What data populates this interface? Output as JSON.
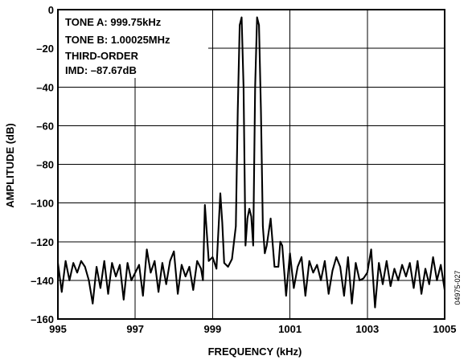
{
  "chart_data": {
    "type": "line",
    "xlabel": "FREQUENCY (kHz)",
    "ylabel": "AMPLITUDE (dB)",
    "xlim": [
      995,
      1005
    ],
    "ylim": [
      -160,
      0
    ],
    "x_ticks": [
      995,
      997,
      999,
      1001,
      1003,
      1005
    ],
    "y_ticks": [
      0,
      -20,
      -40,
      -60,
      -80,
      -100,
      -120,
      -140,
      -160
    ],
    "x_tick_labels": [
      "995",
      "997",
      "999",
      "1001",
      "1003",
      "1005"
    ],
    "y_tick_labels": [
      "0",
      "–20",
      "–40",
      "–60",
      "–80",
      "–100",
      "–120",
      "–140",
      "–160"
    ],
    "grid": true,
    "annotations": [
      "TONE A: 999.75kHz",
      "TONE B: 1.00025MHz",
      "THIRD-ORDER",
      "IMD: –87.67dB"
    ],
    "figure_id": "04975-027",
    "series": [
      {
        "x": [
          995.0,
          995.1,
          995.2,
          995.3,
          995.4,
          995.5,
          995.6,
          995.7,
          995.8,
          995.9,
          996.0,
          996.1,
          996.2,
          996.3,
          996.4,
          996.5,
          996.6,
          996.7,
          996.8,
          996.9,
          997.0,
          997.1,
          997.2,
          997.3,
          997.4,
          997.5,
          997.6,
          997.7,
          997.8,
          997.9,
          998.0,
          998.1,
          998.2,
          998.3,
          998.4,
          998.5,
          998.6,
          998.7,
          998.75,
          998.8,
          998.9,
          999.0,
          999.1,
          999.2,
          999.25,
          999.3,
          999.4,
          999.5,
          999.6,
          999.65,
          999.7,
          999.75,
          999.8,
          999.85,
          999.9,
          999.95,
          1000.0,
          1000.05,
          1000.1,
          1000.15,
          1000.2,
          1000.25,
          1000.3,
          1000.35,
          1000.4,
          1000.5,
          1000.6,
          1000.7,
          1000.75,
          1000.8,
          1000.9,
          1001.0,
          1001.1,
          1001.2,
          1001.3,
          1001.4,
          1001.5,
          1001.6,
          1001.7,
          1001.8,
          1001.9,
          1002.0,
          1002.1,
          1002.2,
          1002.3,
          1002.4,
          1002.5,
          1002.6,
          1002.7,
          1002.8,
          1002.9,
          1003.0,
          1003.1,
          1003.2,
          1003.3,
          1003.4,
          1003.5,
          1003.6,
          1003.7,
          1003.8,
          1003.9,
          1004.0,
          1004.1,
          1004.2,
          1004.3,
          1004.4,
          1004.5,
          1004.6,
          1004.7,
          1004.8,
          1004.9,
          1005.0
        ],
        "y": [
          -131,
          -146,
          -130,
          -140,
          -131,
          -136,
          -130,
          -133,
          -140,
          -152,
          -133,
          -144,
          -130,
          -147,
          -131,
          -138,
          -132,
          -150,
          -131,
          -140,
          -136,
          -132,
          -148,
          -124,
          -136,
          -130,
          -146,
          -131,
          -142,
          -130,
          -125,
          -147,
          -132,
          -138,
          -133,
          -145,
          -130,
          -134,
          -140,
          -101,
          -130,
          -128,
          -134,
          -95,
          -110,
          -131,
          -133,
          -129,
          -112,
          -52,
          -8,
          -4,
          -40,
          -122,
          -108,
          -103,
          -107,
          -122,
          -40,
          -4,
          -8,
          -52,
          -112,
          -126,
          -122,
          -108,
          -133,
          -133,
          -120,
          -122,
          -148,
          -126,
          -144,
          -133,
          -128,
          -148,
          -130,
          -136,
          -132,
          -140,
          -130,
          -147,
          -135,
          -128,
          -133,
          -148,
          -128,
          -152,
          -131,
          -140,
          -139,
          -136,
          -124,
          -154,
          -131,
          -142,
          -130,
          -143,
          -134,
          -140,
          -132,
          -138,
          -131,
          -144,
          -130,
          -147,
          -134,
          -142,
          -128,
          -140,
          -132,
          -145
        ]
      }
    ]
  }
}
